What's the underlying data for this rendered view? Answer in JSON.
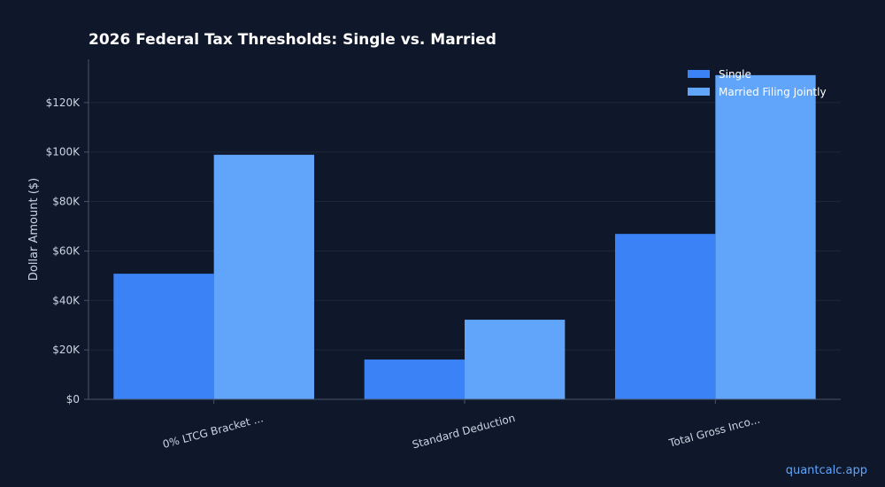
{
  "chart_data": {
    "type": "bar",
    "title": "2026 Federal Tax Thresholds: Single vs. Married",
    "xlabel": "",
    "ylabel": "Dollar Amount ($)",
    "categories": [
      "0% LTCG Bracket ...",
      "Standard Deduction",
      "Total Gross Inco..."
    ],
    "series": [
      {
        "name": "Single",
        "values": [
          50800,
          16100,
          66900
        ],
        "color": "#3b82f6"
      },
      {
        "name": "Married Filing Jointly",
        "values": [
          98900,
          32200,
          131100
        ],
        "color": "#60a5fa"
      }
    ],
    "ylim": [
      0,
      137500
    ],
    "yticks": [
      {
        "value": 0,
        "label": "$0"
      },
      {
        "value": 20000,
        "label": "$20K"
      },
      {
        "value": 40000,
        "label": "$40K"
      },
      {
        "value": 60000,
        "label": "$60K"
      },
      {
        "value": 80000,
        "label": "$80K"
      },
      {
        "value": 100000,
        "label": "$100K"
      },
      {
        "value": 120000,
        "label": "$120K"
      }
    ],
    "grid": true,
    "legend_position": "top-right"
  },
  "colors": {
    "background": "#0f172a",
    "text": "#cbd5e1",
    "title": "#ffffff",
    "grid": "#1e293b",
    "axis": "#475569",
    "watermark": "#60a5fa"
  },
  "watermark": "quantcalc.app"
}
